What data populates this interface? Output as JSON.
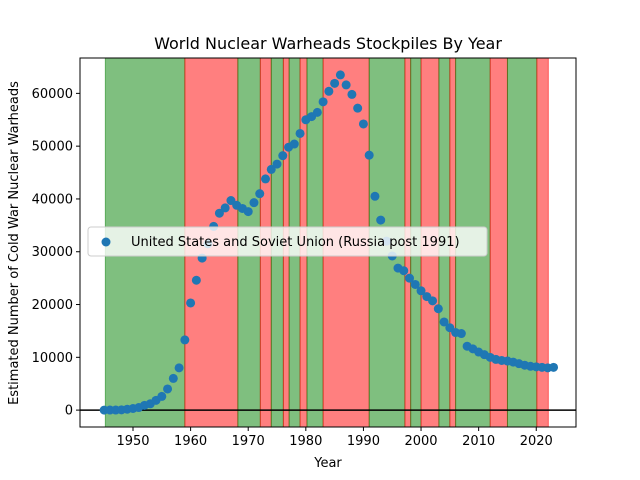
{
  "chart_data": {
    "type": "scatter",
    "title": "World Nuclear Warheads Stockpiles By Year",
    "xlabel": "Year",
    "ylabel": "Estimated Number of Cold War Nuclear Warheads",
    "xlim": [
      1940.8,
      2026.9
    ],
    "ylim": [
      -3200,
      66700
    ],
    "xticks": [
      1950,
      1960,
      1970,
      1980,
      1990,
      2000,
      2010,
      2020
    ],
    "yticks": [
      0,
      10000,
      20000,
      30000,
      40000,
      50000,
      60000
    ],
    "grid": false,
    "legend": {
      "placement": "center-left"
    },
    "colors": {
      "series": "#1f77b4",
      "green": "#008000",
      "red": "#ff0000",
      "zero_line": "#000000"
    },
    "zero_line": 0,
    "shaded_periods": [
      {
        "start": 1945.2,
        "end": 1959.0,
        "color": "green"
      },
      {
        "start": 1959.0,
        "end": 1968.2,
        "color": "red"
      },
      {
        "start": 1968.2,
        "end": 1972.1,
        "color": "green"
      },
      {
        "start": 1972.1,
        "end": 1974.0,
        "color": "red"
      },
      {
        "start": 1974.0,
        "end": 1976.1,
        "color": "green"
      },
      {
        "start": 1976.1,
        "end": 1977.1,
        "color": "red"
      },
      {
        "start": 1977.1,
        "end": 1979.0,
        "color": "green"
      },
      {
        "start": 1979.0,
        "end": 1980.2,
        "color": "red"
      },
      {
        "start": 1980.2,
        "end": 1983.0,
        "color": "green"
      },
      {
        "start": 1983.0,
        "end": 1991.0,
        "color": "red"
      },
      {
        "start": 1991.0,
        "end": 1997.2,
        "color": "green"
      },
      {
        "start": 1997.2,
        "end": 1998.2,
        "color": "red"
      },
      {
        "start": 1998.2,
        "end": 2000.0,
        "color": "green"
      },
      {
        "start": 2000.0,
        "end": 2003.1,
        "color": "red"
      },
      {
        "start": 2003.1,
        "end": 2005.0,
        "color": "green"
      },
      {
        "start": 2005.0,
        "end": 2006.0,
        "color": "red"
      },
      {
        "start": 2006.0,
        "end": 2012.0,
        "color": "green"
      },
      {
        "start": 2012.0,
        "end": 2015.0,
        "color": "red"
      },
      {
        "start": 2015.0,
        "end": 2020.1,
        "color": "green"
      },
      {
        "start": 2020.1,
        "end": 2022.1,
        "color": "red"
      }
    ],
    "series": [
      {
        "name": "United States and Soviet Union (Russia post 1991)",
        "x": [
          1945,
          1946,
          1947,
          1948,
          1949,
          1950,
          1951,
          1952,
          1953,
          1954,
          1955,
          1956,
          1957,
          1958,
          1959,
          1960,
          1961,
          1962,
          1963,
          1964,
          1965,
          1966,
          1967,
          1968,
          1969,
          1970,
          1971,
          1972,
          1973,
          1974,
          1975,
          1976,
          1977,
          1978,
          1979,
          1980,
          1981,
          1982,
          1983,
          1984,
          1985,
          1986,
          1987,
          1988,
          1989,
          1990,
          1991,
          1992,
          1993,
          1994,
          1995,
          1996,
          1997,
          1998,
          1999,
          2000,
          2001,
          2002,
          2003,
          2004,
          2005,
          2006,
          2007,
          2008,
          2009,
          2010,
          2011,
          2012,
          2013,
          2014,
          2015,
          2016,
          2017,
          2018,
          2019,
          2020,
          2021,
          2022,
          2023
        ],
        "y": [
          2,
          9,
          13,
          50,
          170,
          304,
          488,
          900,
          1200,
          1850,
          2600,
          4000,
          6000,
          8000,
          13300,
          20300,
          24600,
          28800,
          31500,
          34800,
          37300,
          38300,
          39700,
          38800,
          38200,
          37600,
          39300,
          41000,
          43800,
          45600,
          46600,
          48200,
          49800,
          50400,
          52400,
          55000,
          55600,
          56400,
          58400,
          60400,
          61900,
          63500,
          61600,
          59800,
          57200,
          54200,
          48300,
          40500,
          36000,
          32000,
          29200,
          26900,
          26400,
          25000,
          23800,
          22600,
          21500,
          20700,
          19200,
          16700,
          15600,
          14700,
          14500,
          12100,
          11600,
          11000,
          10500,
          10000,
          9600,
          9400,
          9300,
          9100,
          8800,
          8500,
          8300,
          8200,
          8100,
          8000,
          8100
        ]
      }
    ]
  }
}
